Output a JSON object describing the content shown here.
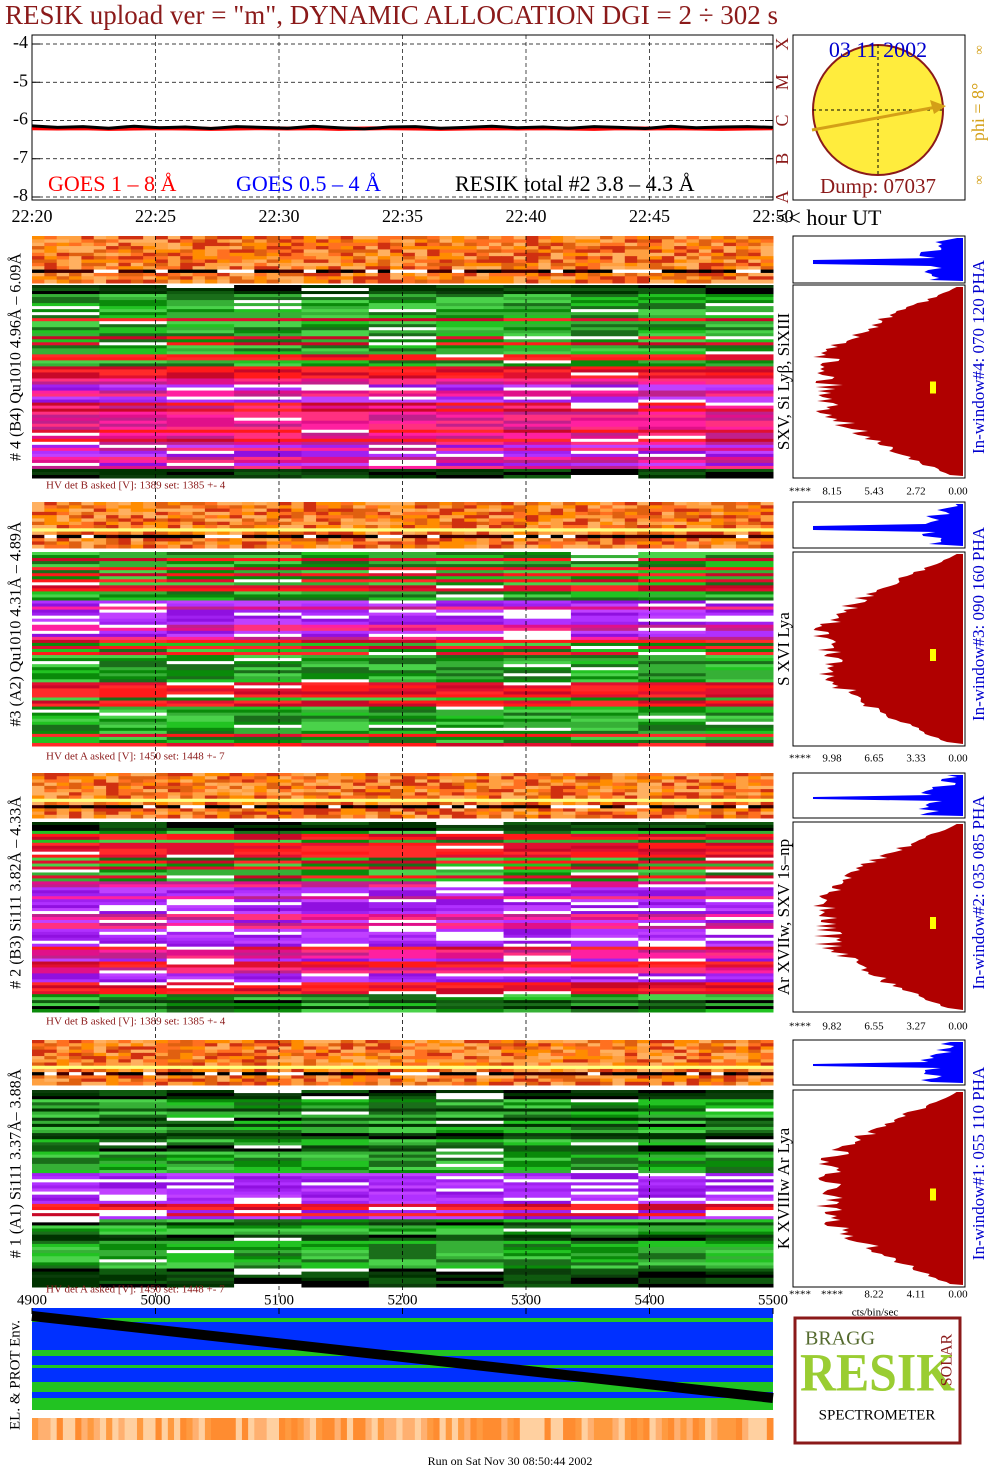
{
  "title": "RESIK upload ver = \"m\", DYNAMIC ALLOCATION  DGI =   2 ÷ 302 s",
  "chart_data": {
    "type": "line",
    "xticks": [
      "22:20",
      "22:25",
      "22:30",
      "22:35",
      "22:40",
      "22:45",
      "22:50"
    ],
    "x_unit": "<< hour UT",
    "ylim": [
      -8,
      -4
    ],
    "yticks": [
      -8,
      -7,
      -6,
      -5,
      -4
    ],
    "y2lim": [
      -8,
      -4
    ],
    "y2ticks": [
      {
        "value": -8,
        "label": "A"
      },
      {
        "value": -7,
        "label": "B"
      },
      {
        "value": -6,
        "label": "C"
      },
      {
        "value": -5,
        "label": "M"
      },
      {
        "value": -4,
        "label": "X"
      }
    ],
    "grid": true,
    "series": [
      {
        "name": "GOES 1 – 8 Å",
        "color": "#ff0000",
        "values": [
          -6.2,
          -6.21,
          -6.2,
          -6.22,
          -6.21,
          -6.2,
          -6.21,
          -6.22,
          -6.21,
          -6.2,
          -6.21,
          -6.2,
          -6.22,
          -6.21,
          -6.2,
          -6.21,
          -6.22,
          -6.21,
          -6.2,
          -6.21,
          -6.2,
          -6.21,
          -6.22,
          -6.2,
          -6.21,
          -6.2,
          -6.21,
          -6.22,
          -6.21,
          -6.2
        ]
      },
      {
        "name": "GOES 0.5 – 4 Å",
        "color": "#0000ff",
        "values": [
          null,
          null,
          null,
          null,
          null,
          null,
          null,
          null,
          null,
          null,
          null,
          null,
          null,
          null,
          null,
          null,
          null,
          null,
          null,
          null,
          null,
          null,
          null,
          null,
          null,
          null,
          null,
          null,
          null,
          null
        ]
      },
      {
        "name": "RESIK total #2  3.8 – 4.3 Å",
        "color": "#000000",
        "values": [
          -6.14,
          -6.18,
          -6.16,
          -6.2,
          -6.15,
          -6.19,
          -6.17,
          -6.21,
          -6.16,
          -6.18,
          -6.2,
          -6.15,
          -6.19,
          -6.22,
          -6.17,
          -6.16,
          -6.2,
          -6.18,
          -6.15,
          -6.19,
          -6.17,
          -6.2,
          -6.16,
          -6.18,
          -6.21,
          -6.15,
          -6.19,
          -6.17,
          -6.16,
          -6.18
        ]
      }
    ]
  },
  "sun": {
    "date": "03 11 2002",
    "phi": "phi =  8°",
    "dump": "Dump: 07037",
    "mark": "∞"
  },
  "detectors": [
    {
      "label": "# 4 (B4) Qu1010 4.96Å – 6.09Å",
      "hv": "HV det B asked [V]:  1389 set:  1385 +-    4",
      "lines": "SXV, Si Lyβ, SiXIII",
      "window": "In-window#4:  070 120 PHA",
      "hist_ticks": [
        "****",
        "8.15",
        "5.43",
        "2.72",
        "0.00"
      ]
    },
    {
      "label": "#3 (A2) Qu1010  4.31Å – 4.89Å",
      "hv": "HV det A asked [V]:  1450 set:  1448 +-    7",
      "lines": "S XVI Lya",
      "window": "In-window#3:  090 160 PHA",
      "hist_ticks": [
        "****",
        "9.98",
        "6.65",
        "3.33",
        "0.00"
      ]
    },
    {
      "label": "# 2 (B3) Si111  3.82Å – 4.33Å",
      "hv": "HV det B asked [V]:  1389 set:  1385 +-    4",
      "lines": "Ar XVIIw, SXV 1s–np",
      "window": "In-window#2:  035 085 PHA",
      "hist_ticks": [
        "****",
        "9.82",
        "6.55",
        "3.27",
        "0.00"
      ]
    },
    {
      "label": "# 1 (A1) Si111  3.37Å– 3.88Å",
      "hv": "HV det A asked [V]:  1450 set:  1448 +-    7",
      "lines": "K XVIIIw  Ar Lya",
      "window": "In-window#1:  055 110 PHA",
      "hist_ticks": [
        "****",
        "****",
        "8.22",
        "4.11",
        "0.00"
      ]
    }
  ],
  "hist_unit": "cts/bin/sec",
  "env": {
    "label": "EL. & PROT Env.",
    "xlim": [
      4900,
      5500
    ],
    "xticks": [
      4900,
      5000,
      5100,
      5200,
      5300,
      5400,
      5500
    ]
  },
  "logo": {
    "bragg": "BRAGG",
    "resik": "RESIK",
    "solar": "SOLAR",
    "spectrometer": "SPECTROMETER"
  },
  "footer": "Run on Sat Nov 30 08:50:44 2002"
}
